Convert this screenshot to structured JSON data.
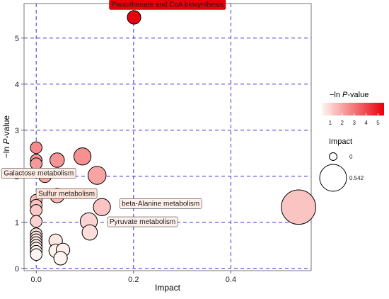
{
  "chart_data": {
    "type": "scatter",
    "xlabel": "Impact",
    "ylabel_prefix": "−ln ",
    "ylabel_italic": "P",
    "ylabel_suffix": "-value",
    "xlim": [
      -0.025,
      0.565
    ],
    "ylim": [
      -0.05,
      5.75
    ],
    "xticks": [
      {
        "value": 0.0,
        "label": "0.0"
      },
      {
        "value": 0.2,
        "label": "0.2"
      },
      {
        "value": 0.4,
        "label": "0.4"
      }
    ],
    "yticks": [
      {
        "value": 0,
        "label": "0"
      },
      {
        "value": 1,
        "label": "1"
      },
      {
        "value": 2,
        "label": "2"
      },
      {
        "value": 3,
        "label": "3"
      },
      {
        "value": 4,
        "label": "4"
      },
      {
        "value": 5,
        "label": "5"
      }
    ],
    "grid": "dashed",
    "grid_color": "#3a2fd0",
    "color_low": "#fff5f0",
    "color_high": "#e8000b",
    "points": [
      {
        "x": 0.201,
        "y": 5.45,
        "impact": 0.08
      },
      {
        "x": 0.539,
        "y": 1.33,
        "impact": 0.542
      },
      {
        "x": 0.125,
        "y": 2.02,
        "impact": 0.18
      },
      {
        "x": 0.095,
        "y": 2.43,
        "impact": 0.16
      },
      {
        "x": 0.043,
        "y": 2.35,
        "impact": 0.1
      },
      {
        "x": 0.043,
        "y": 1.58,
        "impact": 0.1
      },
      {
        "x": 0.018,
        "y": 2.0,
        "impact": 0.06
      },
      {
        "x": 0.0,
        "y": 2.62,
        "impact": 0.04
      },
      {
        "x": 0.0,
        "y": 2.35,
        "impact": 0.04
      },
      {
        "x": 0.0,
        "y": 2.27,
        "impact": 0.04
      },
      {
        "x": 0.135,
        "y": 1.33,
        "impact": 0.16
      },
      {
        "x": 0.108,
        "y": 1.02,
        "impact": 0.16
      },
      {
        "x": 0.11,
        "y": 0.78,
        "impact": 0.12
      },
      {
        "x": 0.0,
        "y": 1.48,
        "impact": 0.04
      },
      {
        "x": 0.0,
        "y": 1.37,
        "impact": 0.04
      },
      {
        "x": 0.0,
        "y": 1.26,
        "impact": 0.04
      },
      {
        "x": 0.0,
        "y": 1.02,
        "impact": 0.04
      },
      {
        "x": 0.0,
        "y": 0.75,
        "impact": 0.04
      },
      {
        "x": 0.0,
        "y": 0.68,
        "impact": 0.04
      },
      {
        "x": 0.0,
        "y": 0.62,
        "impact": 0.04
      },
      {
        "x": 0.0,
        "y": 0.56,
        "impact": 0.04
      },
      {
        "x": 0.0,
        "y": 0.5,
        "impact": 0.04
      },
      {
        "x": 0.0,
        "y": 0.44,
        "impact": 0.04
      },
      {
        "x": 0.0,
        "y": 0.37,
        "impact": 0.04
      },
      {
        "x": 0.0,
        "y": 0.3,
        "impact": 0.04
      },
      {
        "x": 0.04,
        "y": 0.6,
        "impact": 0.08
      },
      {
        "x": 0.04,
        "y": 0.38,
        "impact": 0.08
      },
      {
        "x": 0.055,
        "y": 0.4,
        "impact": 0.08
      },
      {
        "x": 0.05,
        "y": 0.22,
        "impact": 0.08
      }
    ],
    "annotations": [
      {
        "text": "Pantothenate and CoA biosynthesis",
        "x": 0.201,
        "y": 5.45
      },
      {
        "text": "Galactose metabolism",
        "x": 0.125,
        "y": 2.02
      },
      {
        "text": "Sulfur metabolism",
        "x": 0.135,
        "y": 1.33
      },
      {
        "text": "Pyruvate metabolism",
        "x": 0.11,
        "y": 0.78
      },
      {
        "text": "beta-Alanine metabolism",
        "x": 0.539,
        "y": 1.33
      }
    ],
    "legend": {
      "color_title_prefix": "−ln ",
      "color_title_italic": "P",
      "color_title_suffix": "-value",
      "color_ticks": [
        "1",
        "2",
        "3",
        "4",
        "5"
      ],
      "color_range": [
        0.3,
        5.5
      ],
      "size_title": "Impact",
      "size_entries": [
        {
          "label": "0",
          "impact": 0
        },
        {
          "label": "0.542",
          "impact": 0.542
        }
      ],
      "placement": "right"
    }
  }
}
